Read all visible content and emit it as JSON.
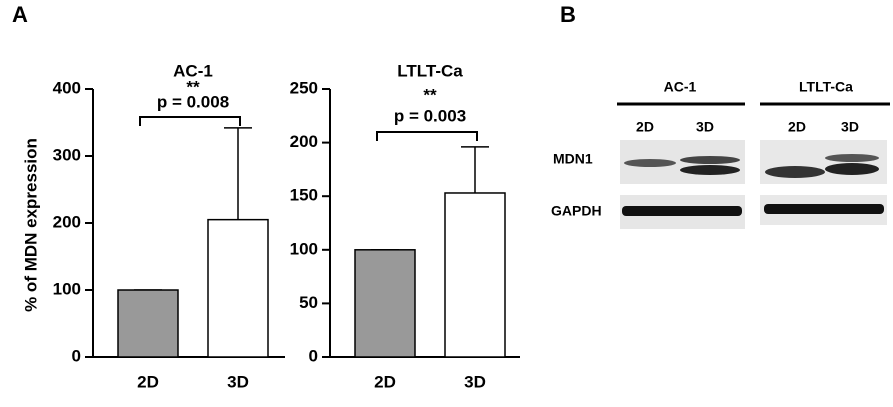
{
  "panel_labels": {
    "a": "A",
    "b": "B"
  },
  "chart_data": [
    {
      "type": "bar",
      "title": "AC-1",
      "y_label": "% of MDN expression",
      "significance": "**",
      "p_value_text": "p = 0.008",
      "categories": [
        "2D",
        "3D"
      ],
      "values": [
        100,
        205
      ],
      "errors": [
        0,
        137
      ],
      "colors": [
        "#999999",
        "#ffffff"
      ],
      "ylim": [
        0,
        400
      ],
      "yticks": [
        0,
        100,
        200,
        300,
        400
      ]
    },
    {
      "type": "bar",
      "title": "LTLT-Ca",
      "significance": "**",
      "p_value_text": "p = 0.003",
      "categories": [
        "2D",
        "3D"
      ],
      "values": [
        100,
        153
      ],
      "errors": [
        0,
        43
      ],
      "colors": [
        "#999999",
        "#ffffff"
      ],
      "ylim": [
        0,
        250
      ],
      "yticks": [
        0,
        50,
        100,
        150,
        200,
        250
      ]
    }
  ],
  "blot": {
    "groups": [
      {
        "name": "AC-1",
        "lanes": [
          "2D",
          "3D"
        ]
      },
      {
        "name": "LTLT-Ca",
        "lanes": [
          "2D",
          "3D"
        ]
      }
    ],
    "rows": [
      "MDN1",
      "GAPDH"
    ]
  }
}
